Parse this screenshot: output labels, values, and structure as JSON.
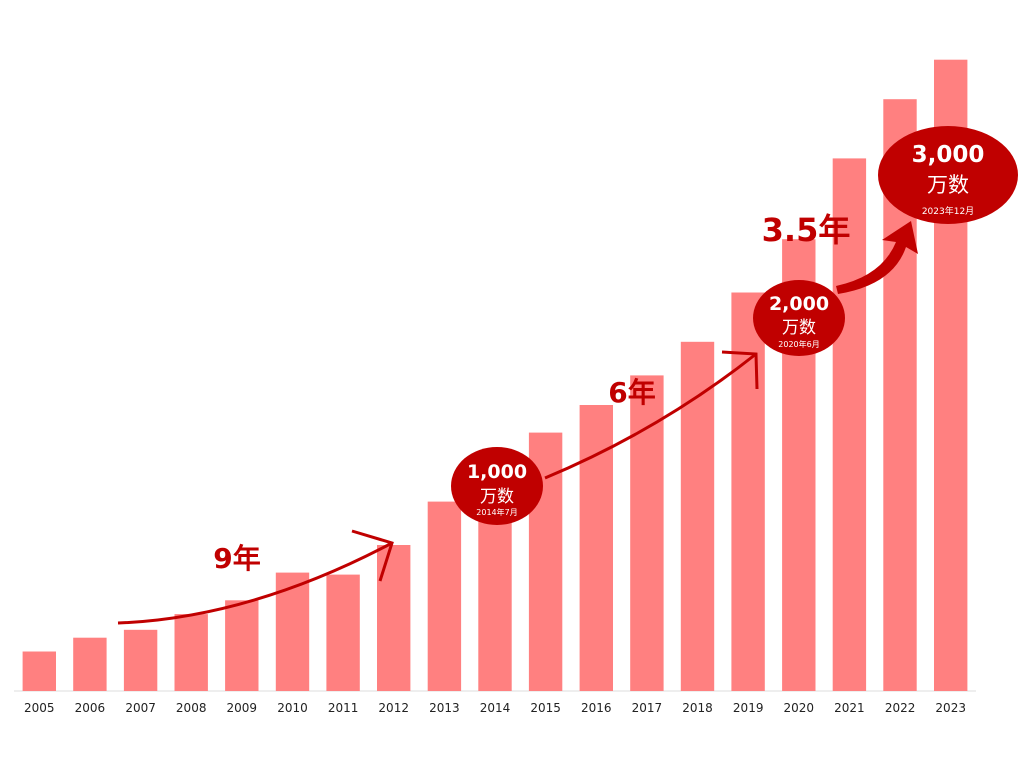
{
  "colors": {
    "bar": "#ff8080",
    "accent": "#c00000",
    "axis": "#dddddd",
    "tick_text": "#222222"
  },
  "chart_data": {
    "type": "bar",
    "title": "",
    "xlabel": "",
    "ylabel": "",
    "categories": [
      "2005",
      "2006",
      "2007",
      "2008",
      "2009",
      "2010",
      "2011",
      "2012",
      "2013",
      "2014",
      "2015",
      "2016",
      "2017",
      "2018",
      "2019",
      "2020",
      "2021",
      "2022",
      "2023"
    ],
    "values": [
      200,
      270,
      310,
      390,
      460,
      600,
      590,
      740,
      960,
      1140,
      1310,
      1450,
      1600,
      1770,
      2020,
      2290,
      2700,
      3000,
      3200
    ],
    "ylim": [
      0,
      3300
    ],
    "grid": false,
    "milestones": [
      {
        "value": "1,000",
        "unit": "万数",
        "date": "2014年7月"
      },
      {
        "value": "2,000",
        "unit": "万数",
        "date": "2020年6月"
      },
      {
        "value": "3,000",
        "unit": "万数",
        "date": "2023年12月"
      }
    ],
    "spans": [
      "9年",
      "6年",
      "3.5年"
    ]
  }
}
